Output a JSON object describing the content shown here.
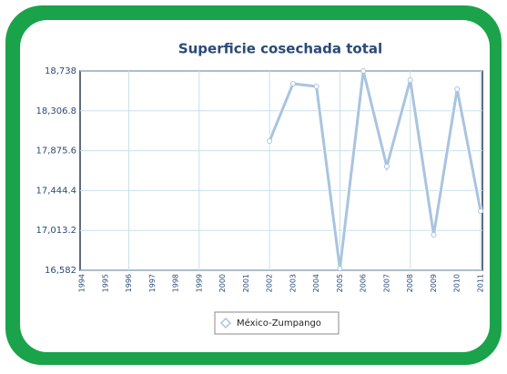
{
  "chart_data": {
    "type": "line",
    "title": "Superficie cosechada total",
    "categories": [
      "1994",
      "1995",
      "1996",
      "1997",
      "1998",
      "1999",
      "2000",
      "2001",
      "2002",
      "2003",
      "2004",
      "2005",
      "2006",
      "2007",
      "2008",
      "2009",
      "2010",
      "2011"
    ],
    "series": [
      {
        "name": "México-Zumpango",
        "color": "#a9c4df",
        "values": [
          null,
          null,
          null,
          null,
          null,
          null,
          null,
          null,
          17980,
          18600,
          18571,
          16600,
          18738,
          17705,
          18640,
          16966,
          18541,
          17222
        ]
      }
    ],
    "ylim": [
      16582,
      18738
    ],
    "yticks": [
      {
        "value": 16582,
        "label": "16,582"
      },
      {
        "value": 17013.2,
        "label": "17,013.2"
      },
      {
        "value": 17444.4,
        "label": "17,444.4"
      },
      {
        "value": 17875.6,
        "label": "17,875.6"
      },
      {
        "value": 18306.8,
        "label": "18,306.8"
      },
      {
        "value": 18738,
        "label": "18,738"
      }
    ],
    "grid": true,
    "legend": "bottom"
  }
}
